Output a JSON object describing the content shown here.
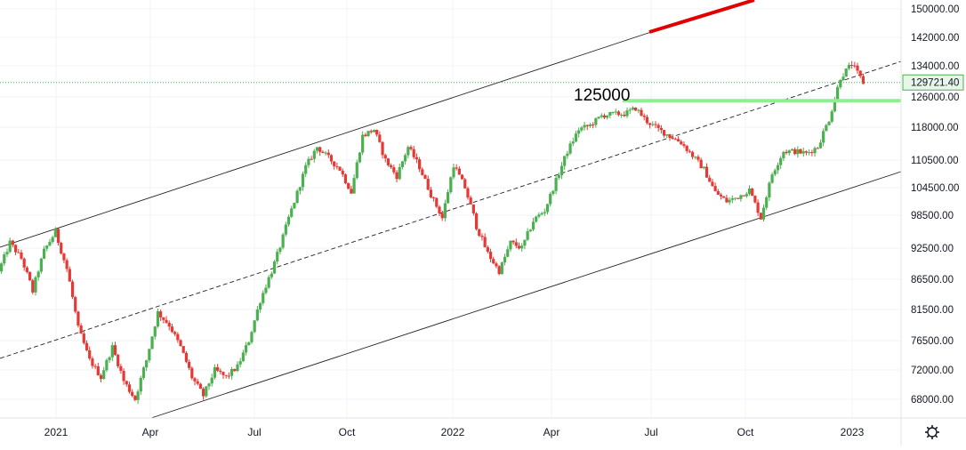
{
  "chart_data": {
    "type": "candlestick",
    "ylim": [
      65000,
      152000
    ],
    "y_ticks": [
      "150000.00",
      "142000.00",
      "134000.00",
      "126000.00",
      "118000.00",
      "110500.00",
      "104500.00",
      "98500.00",
      "92500.00",
      "86500.00",
      "81500.00",
      "76500.00",
      "72000.00",
      "68000.00"
    ],
    "y_tick_values": [
      150000,
      142000,
      134000,
      126000,
      118000,
      110500,
      104500,
      98500,
      92500,
      86500,
      81500,
      76500,
      72000,
      68000
    ],
    "x_ticks": [
      "2021",
      "Apr",
      "Jul",
      "Oct",
      "2022",
      "Apr",
      "Jul",
      "Oct",
      "2023"
    ],
    "last_price": "129721.40",
    "annotation": "125000",
    "colors": {
      "up": "#4caf50",
      "down": "#e53935",
      "grid": "#f0f3fa",
      "support": "#90ee90",
      "trendline": "#e00000"
    },
    "grid": true,
    "series": [
      {
        "values": [
          88000,
          93500,
          90500,
          84500,
          92000,
          95500,
          88500,
          78500,
          73500,
          71000,
          75500,
          70500,
          68000,
          73500,
          81000,
          79000,
          75500,
          71000,
          68500,
          72000,
          71000,
          72500,
          76500,
          83000,
          88000,
          94500,
          101500,
          109000,
          113500,
          111000,
          108500,
          103500,
          116000,
          117500,
          110500,
          107000,
          113500,
          109000,
          103000,
          98000,
          109500,
          104500,
          96500,
          91500,
          88000,
          93500,
          92500,
          97500,
          99500,
          106000,
          112500,
          117500,
          118500,
          121000,
          121500,
          121500,
          123000,
          119500,
          117500,
          116000,
          114500,
          111500,
          108500,
          103500,
          101500,
          102500,
          104000,
          98000,
          107500,
          112500,
          112500,
          112000,
          113500,
          120000,
          131000,
          134500,
          129721
        ]
      }
    ]
  },
  "ui": {
    "settings_icon": "gear-icon"
  }
}
